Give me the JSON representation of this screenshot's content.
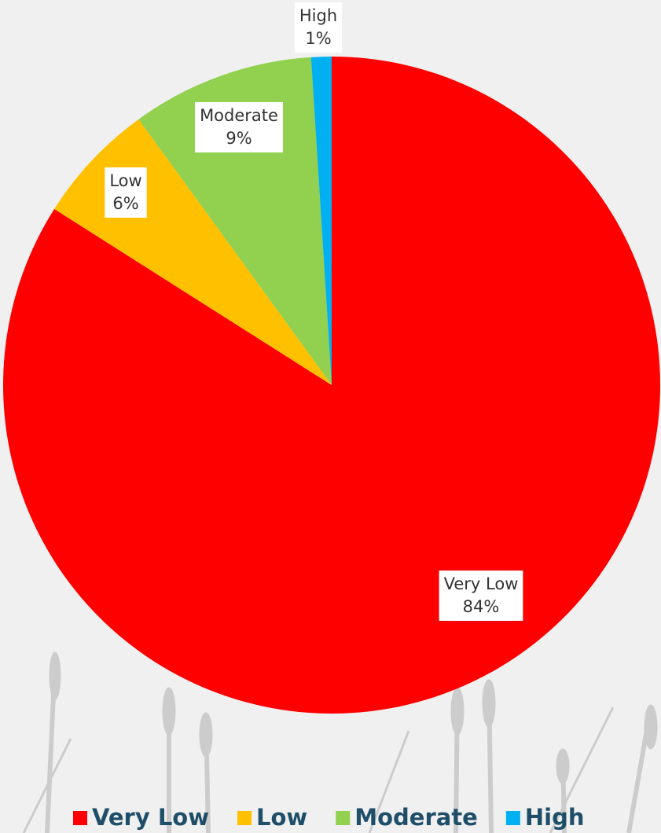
{
  "chart_data": {
    "type": "pie",
    "categories": [
      "Very Low",
      "Low",
      "Moderate",
      "High"
    ],
    "values": [
      84,
      6,
      9,
      1
    ],
    "value_labels": [
      "84%",
      "6%",
      "9%",
      "1%"
    ],
    "colors": [
      "#ff0000",
      "#ffc000",
      "#92d050",
      "#00b0f0"
    ],
    "legend": "bottom"
  }
}
